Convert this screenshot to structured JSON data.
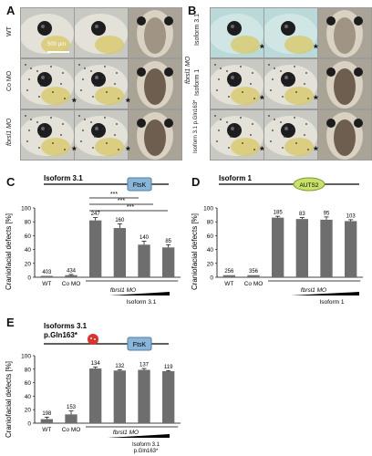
{
  "figure": {
    "panel_labels": [
      "A",
      "B",
      "C",
      "D",
      "E"
    ],
    "panelA": {
      "rows": [
        "WT",
        "Co MO",
        "fbrsl1 MO"
      ],
      "scale_bar": "500 µm"
    },
    "panelB": {
      "rows": [
        "Isoform 3.1",
        "fbrsl1 MO",
        "Isoform 1",
        "Isoform 3.1 p.Gln163*"
      ]
    },
    "asterisk": "*"
  },
  "chart_data": [
    {
      "type": "bar",
      "panel": "C",
      "construct_label": "Isoform 3.1",
      "domain_label": "FtsK",
      "ylabel": "Craniofacial defects [%]",
      "ylim": [
        0,
        100
      ],
      "yticks": [
        0,
        20,
        40,
        60,
        80,
        100
      ],
      "categories": [
        "WT",
        "Co MO",
        "",
        "",
        "",
        ""
      ],
      "values": [
        2,
        3,
        82,
        71,
        47,
        43
      ],
      "errors": [
        0,
        1,
        4,
        6,
        5,
        4
      ],
      "n_labels": [
        "403",
        "434",
        "247",
        "160",
        "140",
        "85"
      ],
      "group_label": "fbrsl1 MO",
      "dose_label": "Isoform 3.1",
      "significance": "***"
    },
    {
      "type": "bar",
      "panel": "D",
      "construct_label": "Isoform 1",
      "domain_label": "AUTS2",
      "ylabel": "Craniofacial defects [%]",
      "ylim": [
        0,
        100
      ],
      "yticks": [
        0,
        20,
        40,
        60,
        80,
        100
      ],
      "categories": [
        "WT",
        "Co MO",
        "",
        "",
        "",
        ""
      ],
      "values": [
        3,
        3,
        86,
        84,
        83,
        81
      ],
      "errors": [
        0,
        0,
        2,
        2,
        4,
        2
      ],
      "n_labels": [
        "256",
        "356",
        "185",
        "83",
        "95",
        "103"
      ],
      "group_label": "fbrsl1 MO",
      "dose_label": "Isoform 1"
    },
    {
      "type": "bar",
      "panel": "E",
      "construct_label_line1": "Isoforms 3.1",
      "construct_label_line2": "p.Gln163*",
      "domain_label": "FtsK",
      "ylabel": "Craniofacial defects [%]",
      "ylim": [
        0,
        100
      ],
      "yticks": [
        0,
        20,
        40,
        60,
        80,
        100
      ],
      "categories": [
        "WT",
        "Co MO",
        "",
        "",
        "",
        ""
      ],
      "values": [
        6,
        13,
        81,
        78,
        79,
        77
      ],
      "errors": [
        3,
        5,
        2,
        1,
        2,
        1
      ],
      "n_labels": [
        "198",
        "153",
        "134",
        "132",
        "137",
        "119"
      ],
      "group_label": "fbrsl1 MO",
      "dose_label_line1": "Isoform 3.1",
      "dose_label_line2": "p.Gln163*"
    }
  ]
}
